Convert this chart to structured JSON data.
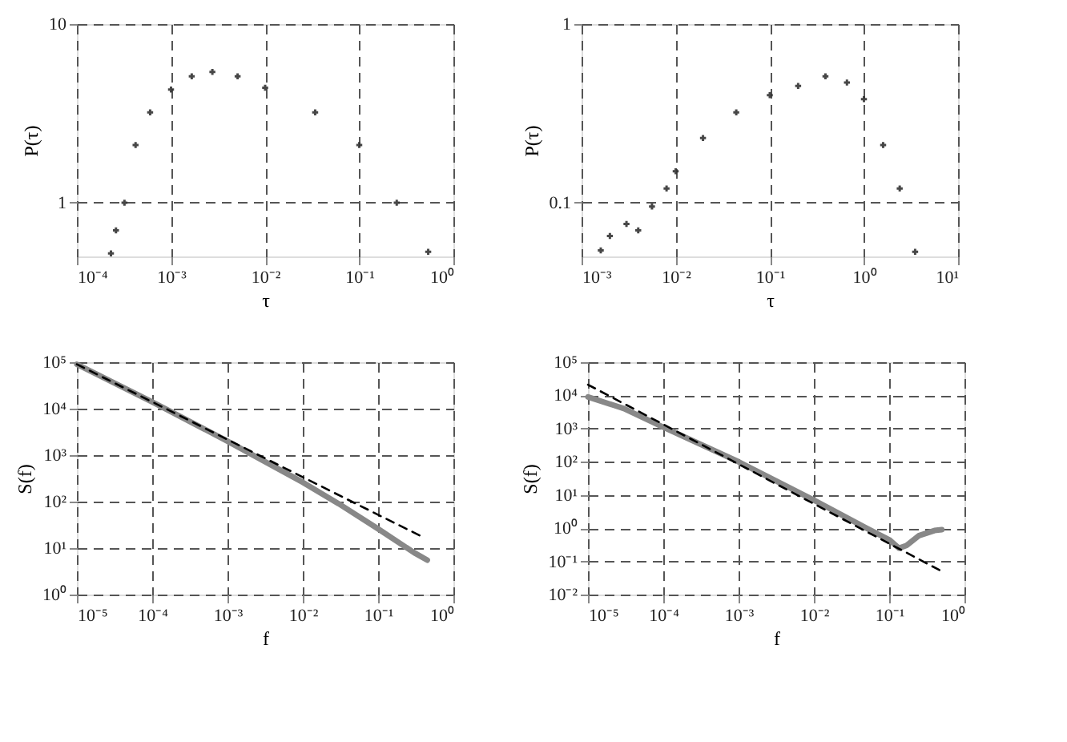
{
  "chart_data": [
    {
      "type": "scatter",
      "xlabel": "τ",
      "ylabel": "P(τ)",
      "log": "xy",
      "grid": true,
      "marker": "cross",
      "xlim": [
        0.0001,
        1
      ],
      "xticks": [
        {
          "value": 0.0001,
          "label": "10⁻⁴"
        },
        {
          "value": 0.001,
          "label": "10⁻³"
        },
        {
          "value": 0.01,
          "label": "10⁻²"
        },
        {
          "value": 0.1,
          "label": "10⁻¹"
        },
        {
          "value": 1,
          "label": "10⁰"
        }
      ],
      "ylim": [
        0.5,
        10
      ],
      "yticks": [
        1,
        10
      ],
      "series": [
        {
          "color": "#333333",
          "x": [
            0.00023,
            0.00026,
            0.00032,
            0.00042,
            0.0006,
            0.001,
            0.00166,
            0.00275,
            0.0051,
            0.01,
            0.034,
            0.1,
            0.25,
            0.54
          ],
          "values": [
            0.52,
            0.7,
            1,
            2.1,
            3.2,
            4.3,
            5.1,
            5.4,
            5.1,
            4.4,
            3.2,
            2.1,
            1,
            0.53
          ]
        }
      ]
    },
    {
      "type": "scatter",
      "xlabel": "τ",
      "ylabel": "P(τ)",
      "log": "xy",
      "grid": true,
      "marker": "cross",
      "xlim": [
        0.001,
        10
      ],
      "xticks": [
        {
          "value": 0.001,
          "label": "10⁻³"
        },
        {
          "value": 0.01,
          "label": "10⁻²"
        },
        {
          "value": 0.1,
          "label": "10⁻¹"
        },
        {
          "value": 1,
          "label": "10⁰"
        },
        {
          "value": 10,
          "label": "10¹"
        }
      ],
      "ylim": [
        0.05,
        1
      ],
      "yticks": [
        0.1,
        1
      ],
      "series": [
        {
          "color": "#333333",
          "x": [
            0.0016,
            0.002,
            0.003,
            0.004,
            0.0056,
            0.008,
            0.01,
            0.0195,
            0.044,
            0.1,
            0.2,
            0.39,
            0.66,
            1,
            1.6,
            2.4,
            3.5
          ],
          "values": [
            0.054,
            0.065,
            0.076,
            0.07,
            0.095,
            0.12,
            0.15,
            0.23,
            0.32,
            0.4,
            0.45,
            0.51,
            0.47,
            0.38,
            0.21,
            0.12,
            0.053
          ]
        }
      ]
    },
    {
      "type": "line",
      "xlabel": "f",
      "ylabel": "S(f)",
      "log": "xy",
      "grid": true,
      "xlim": [
        1e-05,
        1
      ],
      "xticks": [
        {
          "value": 1e-05,
          "label": "10⁻⁵"
        },
        {
          "value": 0.0001,
          "label": "10⁻⁴"
        },
        {
          "value": 0.001,
          "label": "10⁻³"
        },
        {
          "value": 0.01,
          "label": "10⁻²"
        },
        {
          "value": 0.1,
          "label": "10⁻¹"
        },
        {
          "value": 1,
          "label": "10⁰"
        }
      ],
      "ylim": [
        1,
        100000
      ],
      "yticks": [
        {
          "value": 1,
          "label": "10⁰"
        },
        {
          "value": 10,
          "label": "10¹"
        },
        {
          "value": 100,
          "label": "10²"
        },
        {
          "value": 1000,
          "label": "10³"
        },
        {
          "value": 10000,
          "label": "10⁴"
        },
        {
          "value": 100000,
          "label": "10⁵"
        }
      ],
      "series": [
        {
          "color": "#888888",
          "x": [
            1e-05,
            0.0001,
            0.001,
            0.01,
            0.03,
            0.1,
            0.3,
            0.45
          ],
          "values": [
            90000,
            14000,
            2000,
            260,
            90,
            26,
            8,
            5.5
          ]
        },
        {
          "type": "line",
          "line_style": "dashed",
          "color": "#000000",
          "x": [
            1e-05,
            0.4
          ],
          "values": [
            90000,
            17
          ]
        }
      ]
    },
    {
      "type": "line",
      "xlabel": "f",
      "ylabel": "S(f)",
      "log": "xy",
      "grid": true,
      "xlim": [
        1e-05,
        1
      ],
      "xticks": [
        {
          "value": 1e-05,
          "label": "10⁻⁵"
        },
        {
          "value": 0.0001,
          "label": "10⁻⁴"
        },
        {
          "value": 0.001,
          "label": "10⁻³"
        },
        {
          "value": 0.01,
          "label": "10⁻²"
        },
        {
          "value": 0.1,
          "label": "10⁻¹"
        },
        {
          "value": 1,
          "label": "10⁰"
        }
      ],
      "ylim": [
        0.01,
        100000
      ],
      "yticks": [
        {
          "value": 0.01,
          "label": "10⁻²"
        },
        {
          "value": 0.1,
          "label": "10⁻¹"
        },
        {
          "value": 1,
          "label": "10⁰"
        },
        {
          "value": 10,
          "label": "10¹"
        },
        {
          "value": 100,
          "label": "10²"
        },
        {
          "value": 1000,
          "label": "10³"
        },
        {
          "value": 10000,
          "label": "10⁴"
        },
        {
          "value": 100000,
          "label": "10⁵"
        }
      ],
      "series": [
        {
          "color": "#888888",
          "x": [
            1e-05,
            3e-05,
            0.0001,
            0.001,
            0.01,
            0.05,
            0.1,
            0.135,
            0.17,
            0.25,
            0.4,
            0.5
          ],
          "values": [
            9000,
            4000,
            1100,
            100,
            7,
            1.0,
            0.45,
            0.25,
            0.3,
            0.6,
            0.85,
            0.9
          ]
        },
        {
          "type": "line",
          "line_style": "dashed",
          "color": "#000000",
          "x": [
            1e-05,
            0.47
          ],
          "values": [
            21000,
            0.054
          ]
        }
      ]
    }
  ]
}
